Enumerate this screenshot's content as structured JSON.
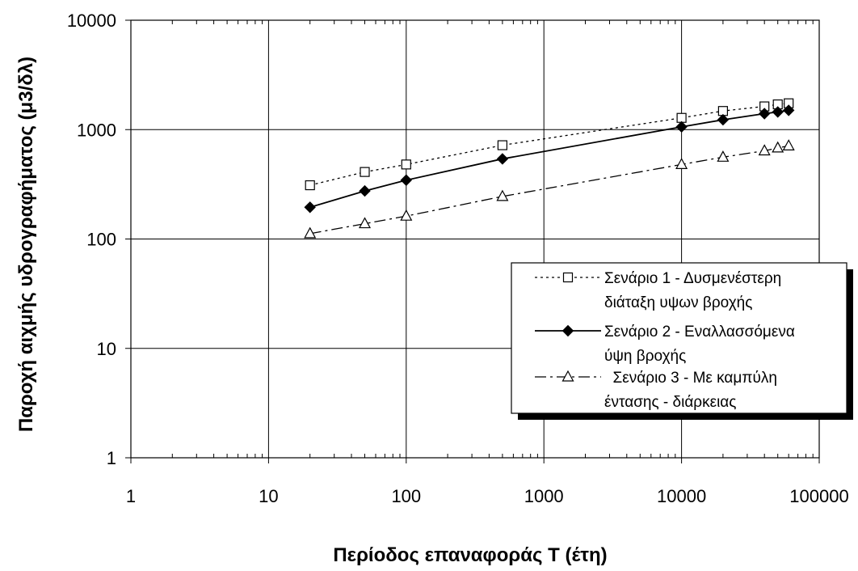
{
  "chart_data": {
    "type": "line",
    "xlabel": "Περίοδος επαναφοράς Τ (έτη)",
    "ylabel": "Παροχή αιχμής υδρογραφήματος (μ3/δλ)",
    "xscale": "log",
    "yscale": "log",
    "xlim": [
      1,
      100000
    ],
    "ylim": [
      1,
      10000
    ],
    "x_tick_labels": [
      "1",
      "10",
      "100",
      "1000",
      "10000",
      "100000"
    ],
    "y_tick_labels": [
      "1",
      "10",
      "100",
      "1000",
      "10000"
    ],
    "grid": true,
    "legend_position": "lower-right",
    "series": [
      {
        "name": "Σενάριο 1 - Δυσμενέστερη διάταξη υψών βροχής",
        "legend_lines": [
          "Σενάριο 1 - Δυσμενέστερη",
          "διάταξη υψων βροχής"
        ],
        "line_style": "dotted",
        "marker": "open-square",
        "x": [
          20,
          50,
          100,
          500,
          10000,
          20000,
          40000,
          50000,
          60000
        ],
        "y": [
          310,
          410,
          480,
          720,
          1280,
          1480,
          1630,
          1700,
          1740
        ]
      },
      {
        "name": "Σενάριο 2 - Εναλλασσόμενα ύψη βροχής",
        "legend_lines": [
          "Σενάριο 2 - Εναλλασσόμενα",
          "ύψη βροχής"
        ],
        "line_style": "solid",
        "marker": "filled-diamond",
        "x": [
          20,
          50,
          100,
          500,
          10000,
          20000,
          40000,
          50000,
          60000
        ],
        "y": [
          195,
          275,
          345,
          540,
          1060,
          1230,
          1400,
          1450,
          1500
        ]
      },
      {
        "name": "Σενάριο 3 - Με καμπύλη έντασης - διάρκειας",
        "legend_lines": [
          "  Σενάριο 3 - Με καμπύλη",
          "έντασης - διάρκειας"
        ],
        "line_style": "dash-dot",
        "marker": "open-triangle",
        "x": [
          20,
          50,
          100,
          500,
          10000,
          20000,
          40000,
          50000,
          60000
        ],
        "y": [
          112,
          138,
          162,
          245,
          480,
          560,
          640,
          680,
          710
        ]
      }
    ]
  }
}
